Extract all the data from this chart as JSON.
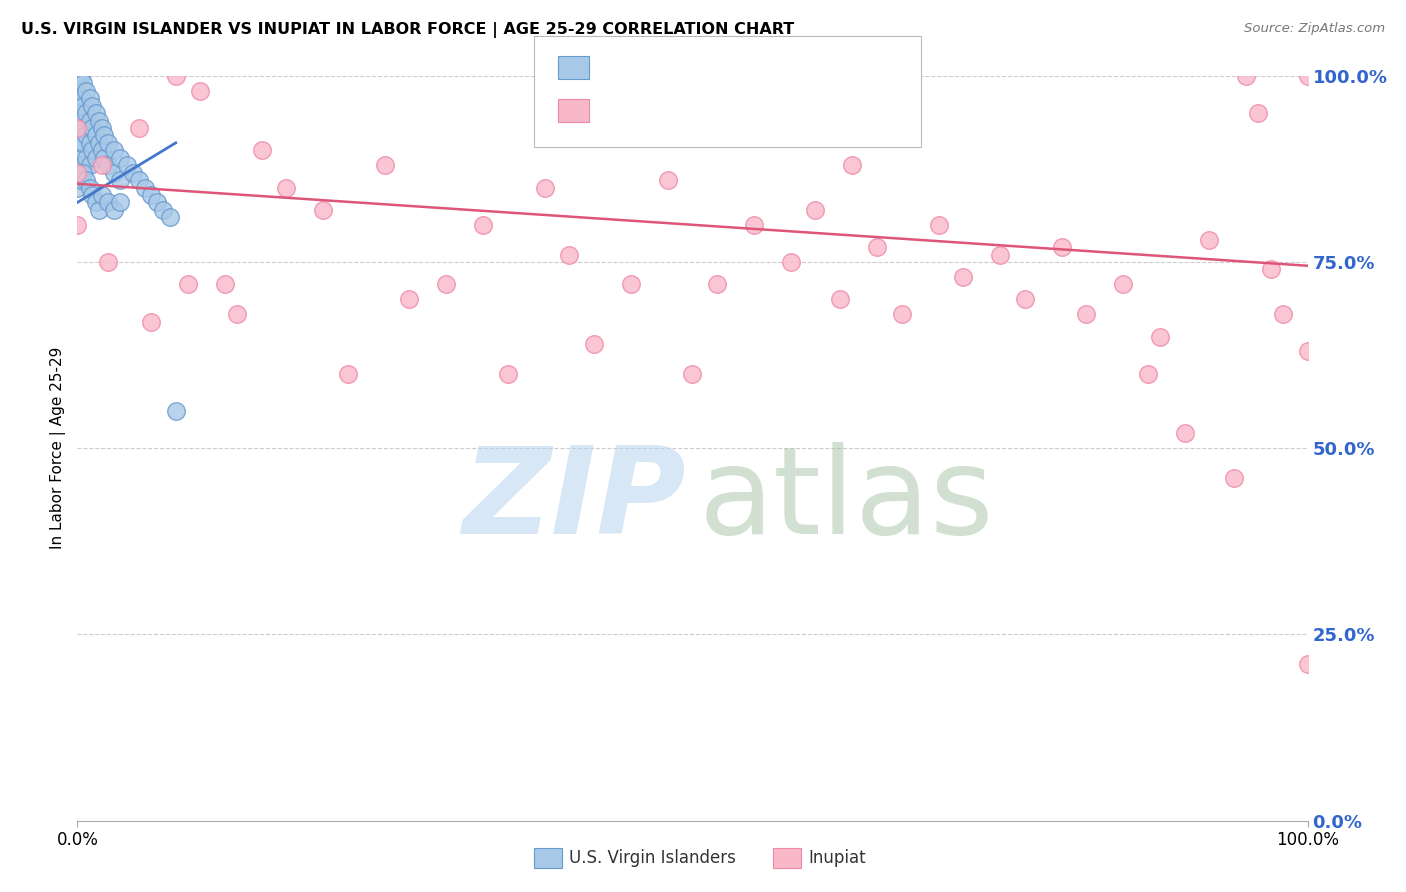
{
  "title": "U.S. VIRGIN ISLANDER VS INUPIAT IN LABOR FORCE | AGE 25-29 CORRELATION CHART",
  "source": "Source: ZipAtlas.com",
  "ylabel": "In Labor Force | Age 25-29",
  "xlim": [
    0.0,
    1.0
  ],
  "ylim": [
    0.0,
    1.0
  ],
  "ytick_labels": [
    "0.0%",
    "25.0%",
    "50.0%",
    "75.0%",
    "100.0%"
  ],
  "ytick_vals": [
    0.0,
    0.25,
    0.5,
    0.75,
    1.0
  ],
  "background_color": "#ffffff",
  "grid_color": "#cccccc",
  "right_label_color": "#3366cc",
  "blue_scatter_color": "#a8c8e8",
  "blue_scatter_edge": "#6699cc",
  "pink_scatter_color": "#f9b8c8",
  "pink_scatter_edge": "#ee88aa",
  "blue_line_color": "#4477cc",
  "pink_line_color": "#dd5577",
  "blue_line_x0": 0.0,
  "blue_line_y0": 0.83,
  "blue_line_x1": 0.08,
  "blue_line_y1": 0.91,
  "pink_line_x0": 0.0,
  "pink_line_y0": 0.855,
  "pink_line_x1": 1.0,
  "pink_line_y1": 0.745,
  "blue_points_x": [
    0.0,
    0.0,
    0.0,
    0.0,
    0.0,
    0.0,
    0.0,
    0.0,
    0.0,
    0.0,
    0.0,
    0.0,
    0.003,
    0.003,
    0.003,
    0.003,
    0.003,
    0.003,
    0.005,
    0.005,
    0.005,
    0.005,
    0.005,
    0.007,
    0.007,
    0.007,
    0.007,
    0.01,
    0.01,
    0.01,
    0.01,
    0.012,
    0.012,
    0.012,
    0.015,
    0.015,
    0.015,
    0.018,
    0.018,
    0.02,
    0.02,
    0.022,
    0.022,
    0.025,
    0.025,
    0.03,
    0.03,
    0.035,
    0.035,
    0.04,
    0.045,
    0.05,
    0.055,
    0.06,
    0.065,
    0.07,
    0.075,
    0.08,
    0.0,
    0.003,
    0.005,
    0.007,
    0.01,
    0.012,
    0.015,
    0.018,
    0.02,
    0.025,
    0.03,
    0.035
  ],
  "blue_points_y": [
    1.0,
    1.0,
    1.0,
    1.0,
    1.0,
    1.0,
    1.0,
    1.0,
    1.0,
    1.0,
    1.0,
    0.98,
    1.0,
    0.97,
    0.95,
    0.93,
    0.91,
    0.89,
    0.99,
    0.96,
    0.93,
    0.91,
    0.88,
    0.98,
    0.95,
    0.92,
    0.89,
    0.97,
    0.94,
    0.91,
    0.88,
    0.96,
    0.93,
    0.9,
    0.95,
    0.92,
    0.89,
    0.94,
    0.91,
    0.93,
    0.9,
    0.92,
    0.89,
    0.91,
    0.88,
    0.9,
    0.87,
    0.89,
    0.86,
    0.88,
    0.87,
    0.86,
    0.85,
    0.84,
    0.83,
    0.82,
    0.81,
    0.55,
    0.85,
    0.86,
    0.87,
    0.86,
    0.85,
    0.84,
    0.83,
    0.82,
    0.84,
    0.83,
    0.82,
    0.83
  ],
  "pink_points_x": [
    0.0,
    0.0,
    0.0,
    0.02,
    0.025,
    0.05,
    0.06,
    0.08,
    0.09,
    0.1,
    0.12,
    0.13,
    0.15,
    0.17,
    0.2,
    0.22,
    0.25,
    0.27,
    0.3,
    0.33,
    0.35,
    0.38,
    0.4,
    0.42,
    0.45,
    0.48,
    0.5,
    0.52,
    0.55,
    0.58,
    0.6,
    0.62,
    0.63,
    0.65,
    0.67,
    0.7,
    0.72,
    0.75,
    0.77,
    0.8,
    0.82,
    0.85,
    0.87,
    0.88,
    0.9,
    0.92,
    0.94,
    0.95,
    0.96,
    0.97,
    0.98,
    1.0,
    1.0,
    1.0
  ],
  "pink_points_y": [
    0.93,
    0.87,
    0.8,
    0.88,
    0.75,
    0.93,
    0.67,
    1.0,
    0.72,
    0.98,
    0.72,
    0.68,
    0.9,
    0.85,
    0.82,
    0.6,
    0.88,
    0.7,
    0.72,
    0.8,
    0.6,
    0.85,
    0.76,
    0.64,
    0.72,
    0.86,
    0.6,
    0.72,
    0.8,
    0.75,
    0.82,
    0.7,
    0.88,
    0.77,
    0.68,
    0.8,
    0.73,
    0.76,
    0.7,
    0.77,
    0.68,
    0.72,
    0.6,
    0.65,
    0.52,
    0.78,
    0.46,
    1.0,
    0.95,
    0.74,
    0.68,
    1.0,
    0.63,
    0.21
  ]
}
